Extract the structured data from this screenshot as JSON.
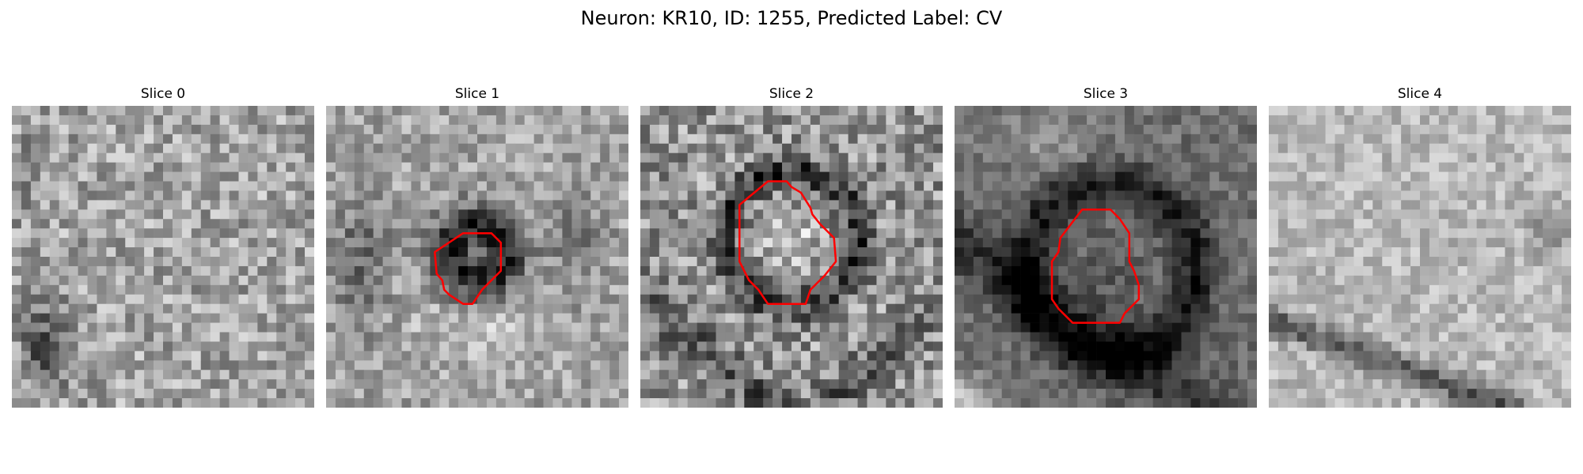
{
  "figure": {
    "title": "Neuron: KR10, ID: 1255, Predicted Label: CV"
  },
  "colors": {
    "outline": "#ff0000",
    "background": "#ffffff"
  },
  "slices": [
    {
      "title": "Slice 0",
      "has_outline": false
    },
    {
      "title": "Slice 1",
      "has_outline": true
    },
    {
      "title": "Slice 2",
      "has_outline": true
    },
    {
      "title": "Slice 3",
      "has_outline": true
    },
    {
      "title": "Slice 4",
      "has_outline": false
    }
  ]
}
